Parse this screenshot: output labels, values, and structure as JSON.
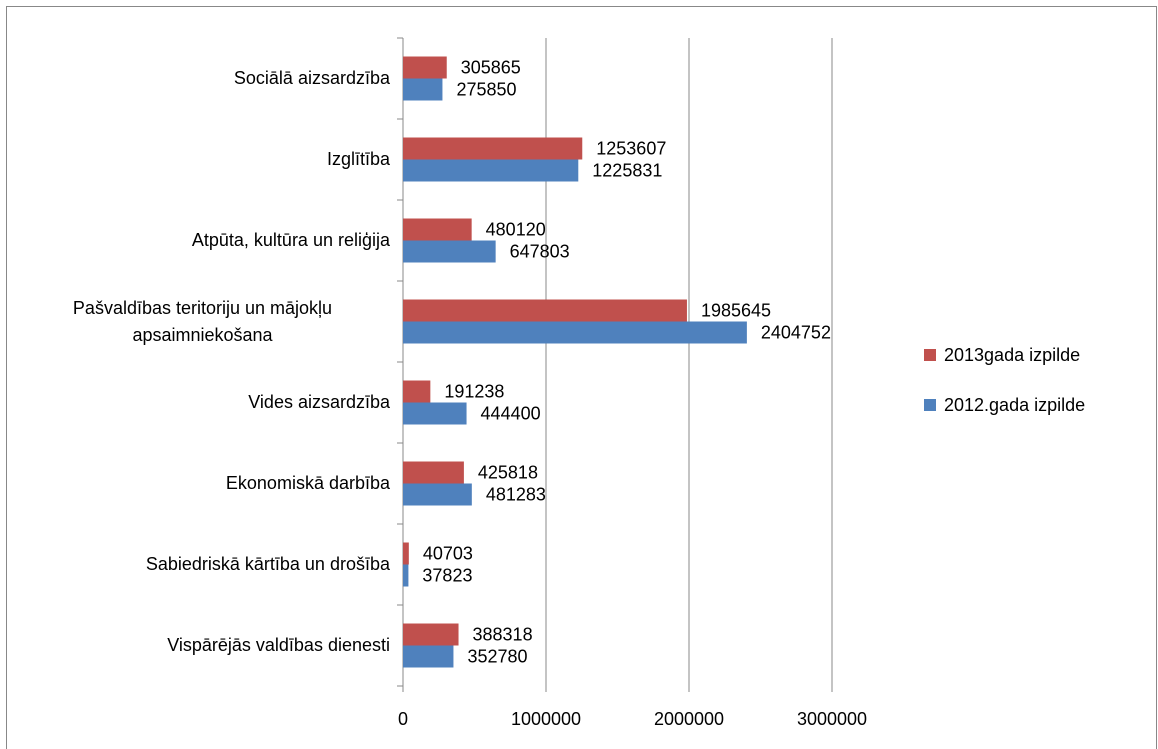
{
  "chart_data": {
    "type": "barh",
    "categories": [
      "Sociālā aizsardzība",
      "Izglītība",
      "Atpūta, kultūra un reliģija",
      "Pašvaldības teritoriju un mājokļu apsaimniekošana",
      "Vides aizsardzība",
      "Ekonomiskā darbība",
      "Sabiedriskā kārtība un drošība",
      "Vispārējās valdības dienesti"
    ],
    "series": [
      {
        "name": "2013gada izpilde",
        "color": "#c0504d",
        "values": [
          305865,
          1253607,
          480120,
          1985645,
          191238,
          425818,
          40703,
          388318
        ]
      },
      {
        "name": "2012.gada izpilde",
        "color": "#4f81bd",
        "values": [
          275850,
          1225831,
          647803,
          2404752,
          444400,
          481283,
          37823,
          352780
        ]
      }
    ],
    "xlim": [
      0,
      3000000
    ],
    "xticks": [
      0,
      1000000,
      2000000,
      3000000
    ],
    "grid": true,
    "legend": "right"
  }
}
